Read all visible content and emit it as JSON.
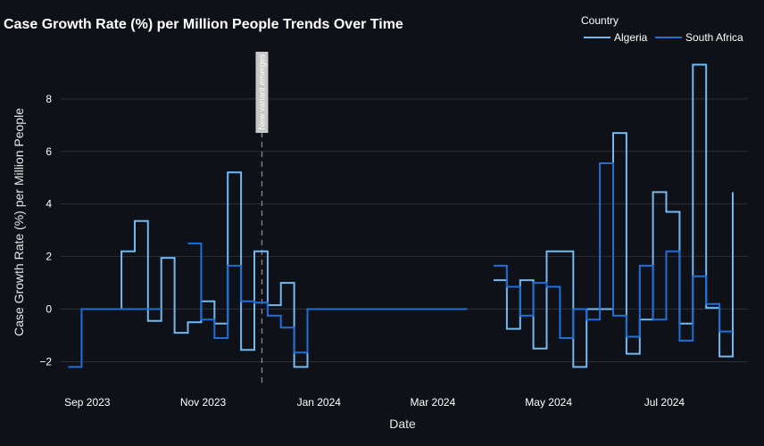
{
  "chart_data": {
    "type": "line",
    "line_shape": "step",
    "title": "Case Growth Rate (%) per Million People Trends Over Time",
    "xlabel": "Date",
    "ylabel": "Case Growth Rate (%) per Million People",
    "xlim": [
      "2023-08-18",
      "2024-08-14"
    ],
    "ylim": [
      -2.9,
      10.2
    ],
    "x_ticks": [
      {
        "date": "2023-09-01",
        "label": "Sep 2023"
      },
      {
        "date": "2023-11-01",
        "label": "Nov 2023"
      },
      {
        "date": "2024-01-01",
        "label": "Jan 2024"
      },
      {
        "date": "2024-03-01",
        "label": "Mar 2024"
      },
      {
        "date": "2024-05-01",
        "label": "May 2024"
      },
      {
        "date": "2024-07-01",
        "label": "Jul 2024"
      }
    ],
    "y_ticks": [
      -2,
      0,
      2,
      4,
      6,
      8
    ],
    "grid": true,
    "legend": {
      "title": "Country",
      "position": "top-right"
    },
    "annotation": {
      "date": "2023-12-02",
      "text": "New variant emerges"
    },
    "series": [
      {
        "name": "Algeria",
        "color": "#74b9f0",
        "points": [
          [
            "2023-08-22",
            null
          ],
          [
            "2023-08-29",
            0
          ],
          [
            "2023-09-05",
            0
          ],
          [
            "2023-09-12",
            0
          ],
          [
            "2023-09-19",
            2.2
          ],
          [
            "2023-09-26",
            3.35
          ],
          [
            "2023-10-03",
            -0.45
          ],
          [
            "2023-10-10",
            1.95
          ],
          [
            "2023-10-17",
            -0.9
          ],
          [
            "2023-10-24",
            -0.5
          ],
          [
            "2023-10-31",
            0.3
          ],
          [
            "2023-11-07",
            -0.55
          ],
          [
            "2023-11-14",
            5.2
          ],
          [
            "2023-11-21",
            -1.55
          ],
          [
            "2023-11-28",
            2.2
          ],
          [
            "2023-12-05",
            0.15
          ],
          [
            "2023-12-12",
            1.0
          ],
          [
            "2023-12-19",
            -2.2
          ],
          [
            "2023-12-26",
            0
          ],
          [
            "2024-01-02",
            0
          ],
          [
            "2024-01-09",
            0
          ],
          [
            "2024-01-16",
            0
          ],
          [
            "2024-01-23",
            0
          ],
          [
            "2024-01-30",
            0
          ],
          [
            "2024-02-06",
            0
          ],
          [
            "2024-02-13",
            0
          ],
          [
            "2024-02-20",
            0
          ],
          [
            "2024-02-27",
            0
          ],
          [
            "2024-03-05",
            0
          ],
          [
            "2024-03-12",
            0
          ],
          [
            "2024-03-19",
            0
          ],
          [
            "2024-03-26",
            null
          ],
          [
            "2024-04-02",
            1.1
          ],
          [
            "2024-04-09",
            -0.75
          ],
          [
            "2024-04-16",
            1.1
          ],
          [
            "2024-04-23",
            -1.5
          ],
          [
            "2024-04-30",
            2.2
          ],
          [
            "2024-05-07",
            2.2
          ],
          [
            "2024-05-14",
            -2.2
          ],
          [
            "2024-05-21",
            0
          ],
          [
            "2024-05-28",
            0
          ],
          [
            "2024-06-04",
            6.7
          ],
          [
            "2024-06-11",
            -1.7
          ],
          [
            "2024-06-18",
            -0.4
          ],
          [
            "2024-06-25",
            4.45
          ],
          [
            "2024-07-02",
            3.7
          ],
          [
            "2024-07-09",
            -0.55
          ],
          [
            "2024-07-16",
            9.3
          ],
          [
            "2024-07-23",
            0.05
          ],
          [
            "2024-07-30",
            -1.8
          ],
          [
            "2024-08-06",
            4.45
          ]
        ]
      },
      {
        "name": "South Africa",
        "color": "#1f6fd6",
        "points": [
          [
            "2023-08-22",
            -2.2
          ],
          [
            "2023-08-29",
            0
          ],
          [
            "2023-09-05",
            0
          ],
          [
            "2023-09-12",
            0
          ],
          [
            "2023-09-19",
            0
          ],
          [
            "2023-09-26",
            0
          ],
          [
            "2023-10-03",
            0
          ],
          [
            "2023-10-10",
            0
          ],
          [
            "2023-10-17",
            null
          ],
          [
            "2023-10-24",
            2.5
          ],
          [
            "2023-10-31",
            -0.4
          ],
          [
            "2023-11-07",
            -1.1
          ],
          [
            "2023-11-14",
            1.65
          ],
          [
            "2023-11-21",
            0.3
          ],
          [
            "2023-11-28",
            0.25
          ],
          [
            "2023-12-05",
            -0.25
          ],
          [
            "2023-12-12",
            -0.7
          ],
          [
            "2023-12-19",
            -1.65
          ],
          [
            "2023-12-26",
            0
          ],
          [
            "2024-01-02",
            0
          ],
          [
            "2024-01-09",
            0
          ],
          [
            "2024-01-16",
            0
          ],
          [
            "2024-01-23",
            0
          ],
          [
            "2024-01-30",
            0
          ],
          [
            "2024-02-06",
            0
          ],
          [
            "2024-02-13",
            0
          ],
          [
            "2024-02-20",
            0
          ],
          [
            "2024-02-27",
            0
          ],
          [
            "2024-03-05",
            0
          ],
          [
            "2024-03-12",
            0
          ],
          [
            "2024-03-19",
            0
          ],
          [
            "2024-03-26",
            null
          ],
          [
            "2024-04-02",
            1.65
          ],
          [
            "2024-04-09",
            0.85
          ],
          [
            "2024-04-16",
            -0.25
          ],
          [
            "2024-04-23",
            1.0
          ],
          [
            "2024-04-30",
            0.85
          ],
          [
            "2024-05-07",
            -1.1
          ],
          [
            "2024-05-14",
            0
          ],
          [
            "2024-05-21",
            -0.4
          ],
          [
            "2024-05-28",
            5.55
          ],
          [
            "2024-06-04",
            -0.25
          ],
          [
            "2024-06-11",
            -1.05
          ],
          [
            "2024-06-18",
            1.65
          ],
          [
            "2024-06-25",
            -0.4
          ],
          [
            "2024-07-02",
            2.2
          ],
          [
            "2024-07-09",
            -1.2
          ],
          [
            "2024-07-16",
            1.25
          ],
          [
            "2024-07-23",
            0.2
          ],
          [
            "2024-07-30",
            -0.85
          ],
          [
            "2024-08-06",
            -0.85
          ]
        ]
      }
    ]
  }
}
